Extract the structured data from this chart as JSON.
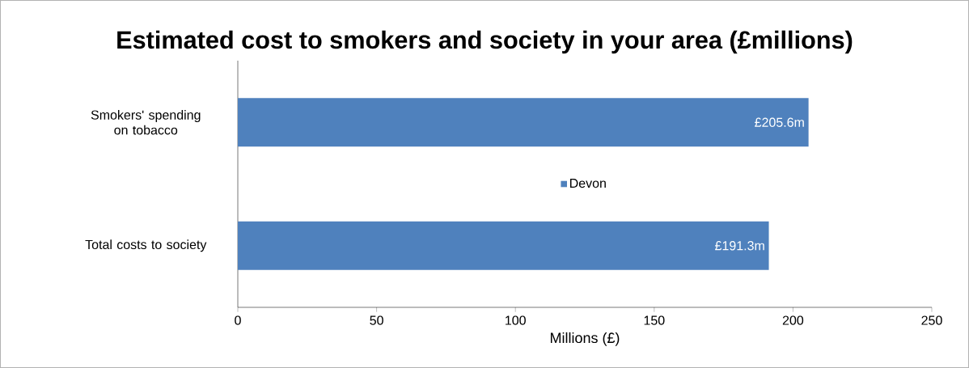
{
  "chart_data": {
    "type": "bar",
    "orientation": "horizontal",
    "title": "Estimated cost to smokers and society in your area (£millions)",
    "xlabel": "Millions (£)",
    "categories": [
      "Smokers' spending on tobacco",
      "Total costs to society"
    ],
    "series": [
      {
        "name": "Devon",
        "color": "#4f81bd",
        "values": [
          205.6,
          191.3
        ],
        "value_labels": [
          "£205.6m",
          "£191.3m"
        ]
      }
    ],
    "xlim": [
      0,
      250
    ],
    "xticks": [
      0,
      50,
      100,
      150,
      200,
      250
    ],
    "legend": "center"
  }
}
